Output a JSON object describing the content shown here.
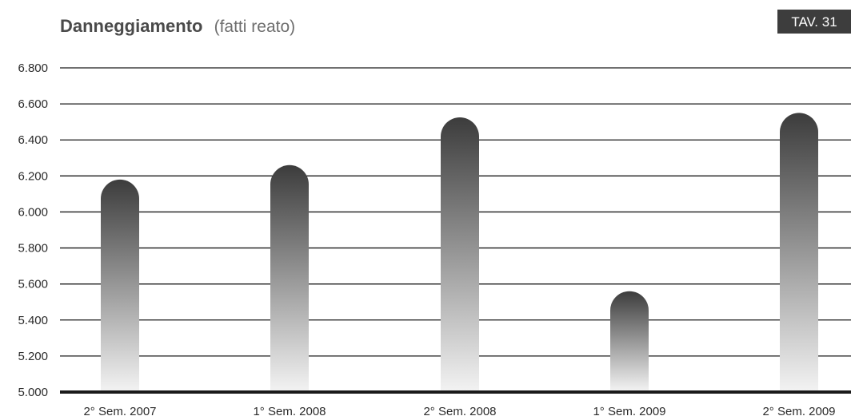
{
  "chart_data": {
    "type": "bar",
    "title": "Danneggiamento",
    "subtitle": "(fatti reato)",
    "badge": "TAV. 31",
    "categories": [
      "2° Sem. 2007",
      "1° Sem. 2008",
      "2° Sem. 2008",
      "1° Sem. 2009",
      "2° Sem. 2009"
    ],
    "values": [
      6180,
      6260,
      6525,
      5560,
      6550
    ],
    "ylim": [
      5000,
      6800
    ],
    "yticks": [
      6800,
      6600,
      6400,
      6200,
      6000,
      5800,
      5600,
      5400,
      5200,
      5000
    ],
    "ytick_labels": [
      "6.800",
      "6.600",
      "6.400",
      "6.200",
      "6.000",
      "5.800",
      "5.600",
      "5.400",
      "5.200",
      "5.000"
    ],
    "grid": true,
    "colors": {
      "bar_top": "#3c3c3c",
      "bar_bottom": "#f2f2f2",
      "grid": "#1a1a1a",
      "badge_bg": "#3d3d3d"
    }
  }
}
